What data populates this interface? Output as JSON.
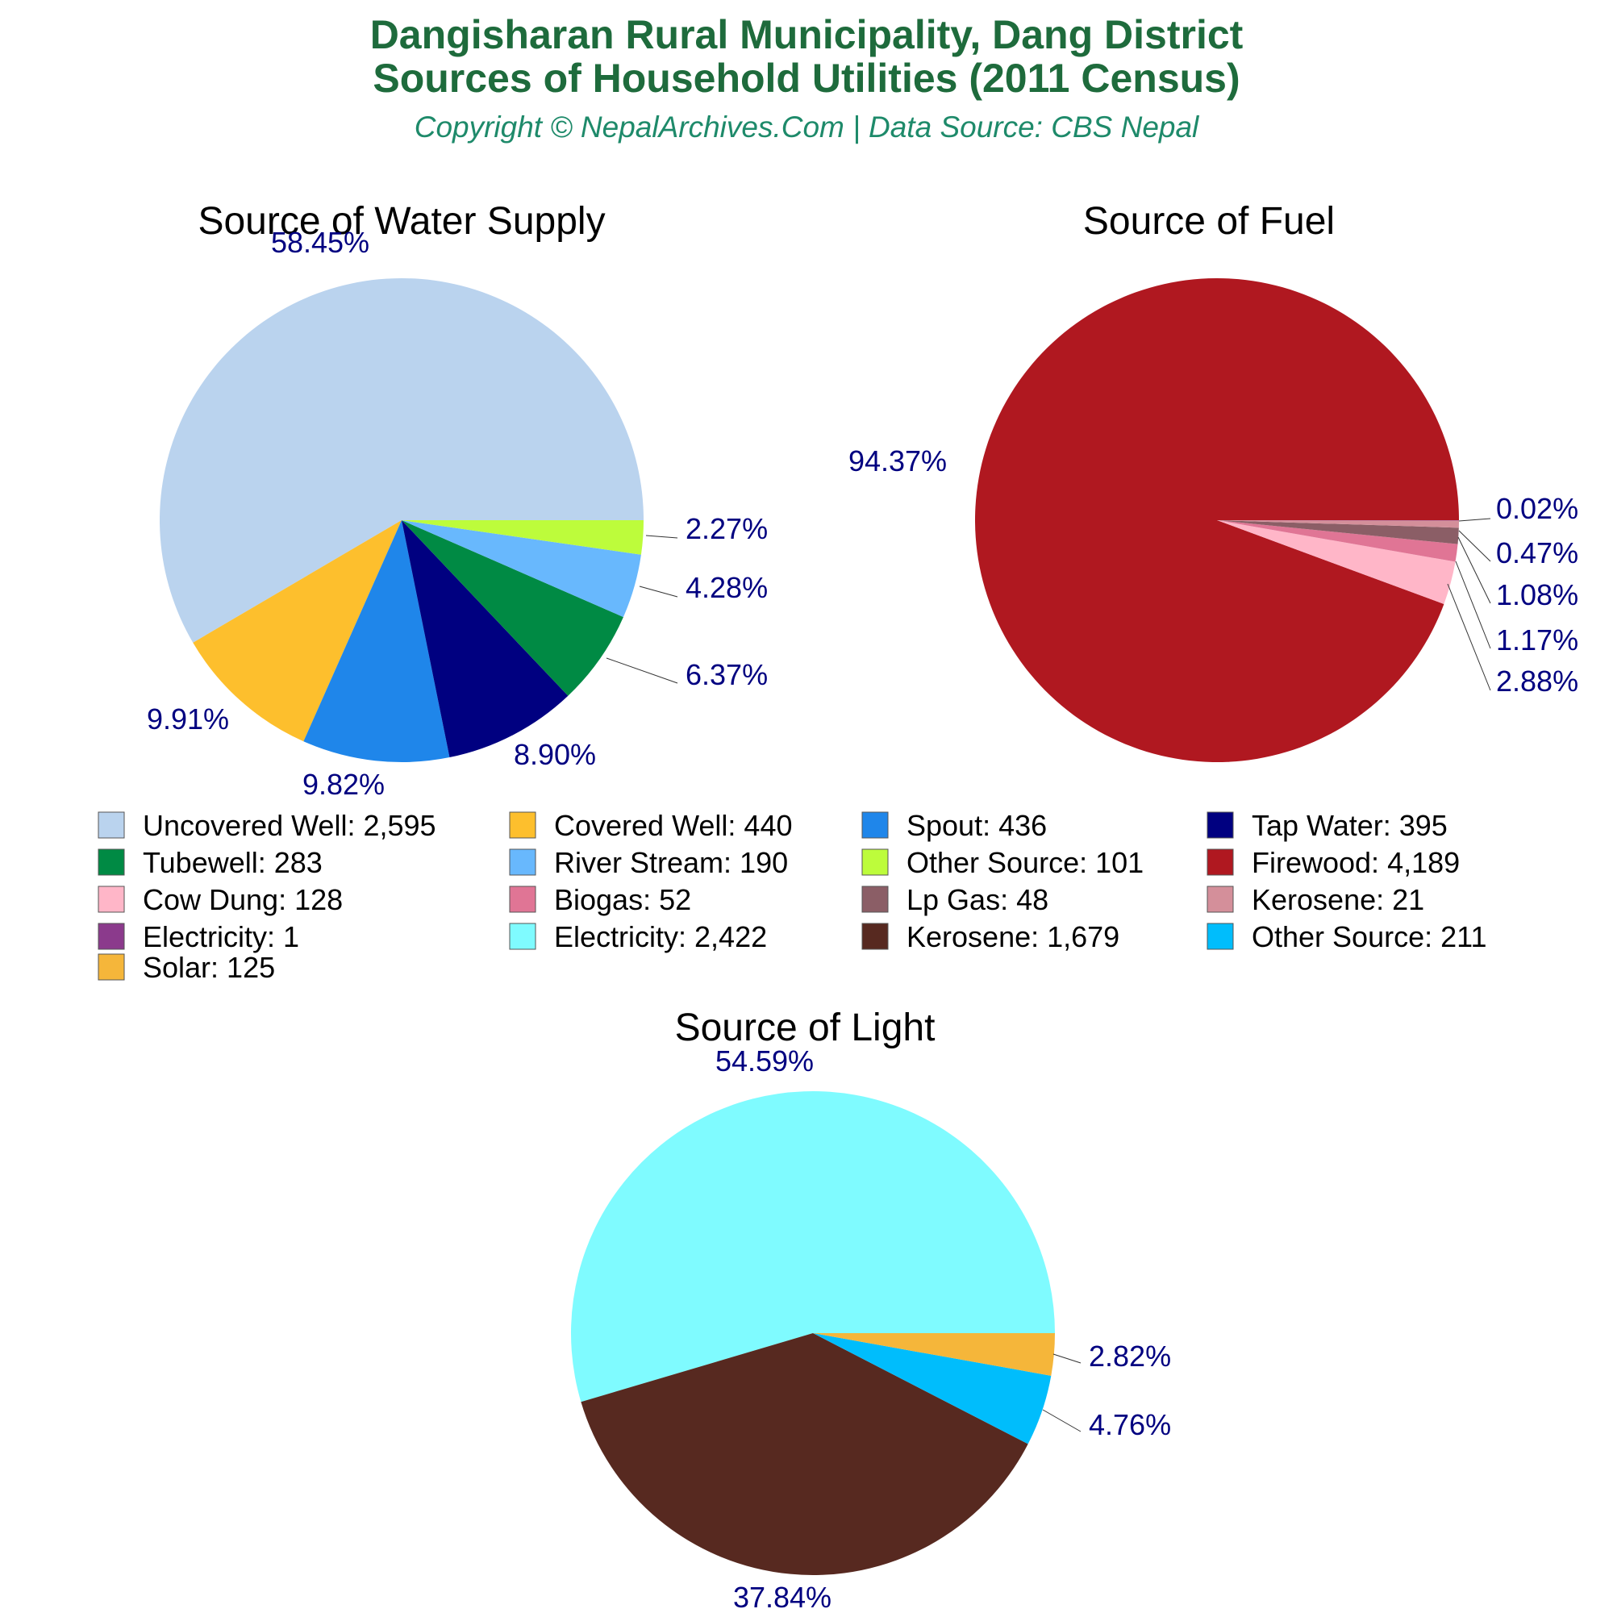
{
  "header": {
    "title_line1": "Dangisharan Rural Municipality, Dang District",
    "title_line2": "Sources of Household Utilities (2011 Census)",
    "subtitle": "Copyright © NepalArchives.Com | Data Source: CBS Nepal"
  },
  "chart_data": [
    {
      "type": "pie",
      "title": "Source of Water Supply",
      "slices": [
        {
          "name": "Uncovered Well",
          "value": 2595,
          "value_label": "2,595",
          "percent_label": "58.45%",
          "color": "#bad3ee"
        },
        {
          "name": "Covered Well",
          "value": 440,
          "value_label": "440",
          "percent_label": "9.91%",
          "color": "#fdbf2d"
        },
        {
          "name": "Spout",
          "value": 436,
          "value_label": "436",
          "percent_label": "9.82%",
          "color": "#1f86ea"
        },
        {
          "name": "Tap Water",
          "value": 395,
          "value_label": "395",
          "percent_label": "8.90%",
          "color": "#000080"
        },
        {
          "name": "Tubewell",
          "value": 283,
          "value_label": "283",
          "percent_label": "6.37%",
          "color": "#008a44"
        },
        {
          "name": "River Stream",
          "value": 190,
          "value_label": "190",
          "percent_label": "4.28%",
          "color": "#68b8fd"
        },
        {
          "name": "Other Source",
          "value": 101,
          "value_label": "101",
          "percent_label": "2.27%",
          "color": "#bdfc3b"
        }
      ]
    },
    {
      "type": "pie",
      "title": "Source of Fuel",
      "slices": [
        {
          "name": "Firewood",
          "value": 4189,
          "value_label": "4,189",
          "percent_label": "94.37%",
          "color": "#b01820"
        },
        {
          "name": "Cow Dung",
          "value": 128,
          "value_label": "128",
          "percent_label": "2.88%",
          "color": "#ffb6c8"
        },
        {
          "name": "Biogas",
          "value": 52,
          "value_label": "52",
          "percent_label": "1.17%",
          "color": "#e07595"
        },
        {
          "name": "Lp Gas",
          "value": 48,
          "value_label": "48",
          "percent_label": "1.08%",
          "color": "#8b5e66"
        },
        {
          "name": "Kerosene",
          "value": 21,
          "value_label": "21",
          "percent_label": "0.47%",
          "color": "#d48f9a"
        },
        {
          "name": "Electricity",
          "value": 1,
          "value_label": "1",
          "percent_label": "0.02%",
          "color": "#8b3a8c"
        }
      ]
    },
    {
      "type": "pie",
      "title": "Source of Light",
      "slices": [
        {
          "name": "Electricity",
          "value": 2422,
          "value_label": "2,422",
          "percent_label": "54.59%",
          "color": "#7ffbff"
        },
        {
          "name": "Kerosene",
          "value": 1679,
          "value_label": "1,679",
          "percent_label": "37.84%",
          "color": "#572920"
        },
        {
          "name": "Other Source",
          "value": 211,
          "value_label": "211",
          "percent_label": "4.76%",
          "color": "#00bdfc"
        },
        {
          "name": "Solar",
          "value": 125,
          "value_label": "125",
          "percent_label": "2.82%",
          "color": "#f5b63a"
        }
      ]
    }
  ]
}
